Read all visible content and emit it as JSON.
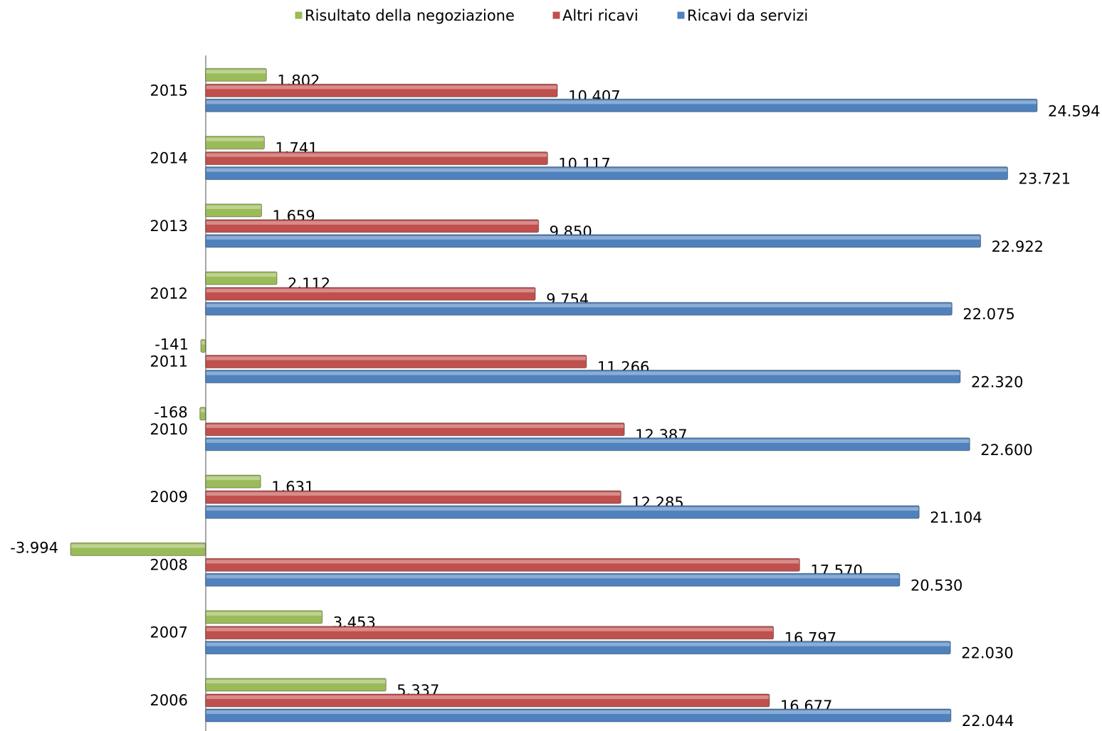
{
  "chart_data": {
    "type": "bar",
    "orientation": "horizontal",
    "categories": [
      "2006",
      "2007",
      "2008",
      "2009",
      "2010",
      "2011",
      "2012",
      "2013",
      "2014",
      "2015"
    ],
    "series": [
      {
        "name": "Risultato della negoziazione",
        "color": "#9bbb59",
        "values": [
          5337,
          3453,
          -3994,
          1631,
          -168,
          -141,
          2112,
          1659,
          1741,
          1802
        ],
        "value_labels": [
          "5.337",
          "3.453",
          "-3.994",
          "1.631",
          "-168",
          "-141",
          "2.112",
          "1.659",
          "1.741",
          "1.802"
        ]
      },
      {
        "name": "Altri ricavi",
        "color": "#c0504d",
        "values": [
          16677,
          16797,
          17570,
          12285,
          12387,
          11266,
          9754,
          9850,
          10117,
          10407
        ],
        "value_labels": [
          "16.677",
          "16.797",
          "17.570",
          "12.285",
          "12.387",
          "11.266",
          "9.754",
          "9.850",
          "10.117",
          "10.407"
        ]
      },
      {
        "name": "Ricavi da servizi",
        "color": "#4f81bd",
        "values": [
          22044,
          22030,
          20530,
          21104,
          22600,
          22320,
          22075,
          22922,
          23721,
          24594
        ],
        "value_labels": [
          "22.044",
          "22.030",
          "20.530",
          "21.104",
          "22.600",
          "22.320",
          "22.075",
          "22.922",
          "23.721",
          "24.594"
        ]
      }
    ],
    "legend": "top"
  }
}
